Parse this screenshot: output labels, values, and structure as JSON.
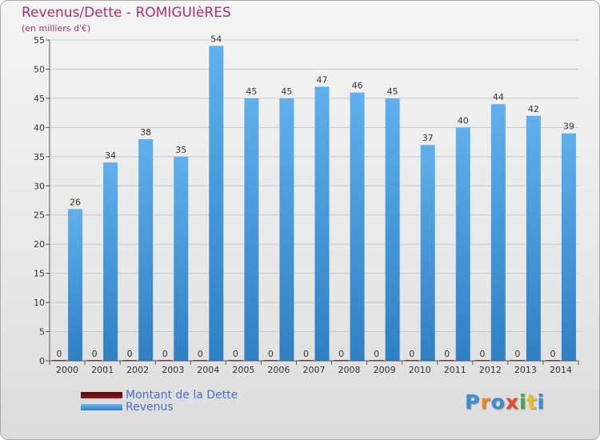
{
  "title": "Revenus/Dette - ROMIGUIèRES",
  "subtitle": "(en milliers d'€)",
  "legend": {
    "debt_label": "Montant de la Dette",
    "revenue_label": "Revenus"
  },
  "logo_text": "Proxiti",
  "colors": {
    "revenue": "#3a8fd6",
    "debt": "#7a1010",
    "title": "#b03066",
    "axis_text": "#333333"
  },
  "chart_data": {
    "type": "bar",
    "categories": [
      "2000",
      "2001",
      "2002",
      "2003",
      "2004",
      "2005",
      "2006",
      "2007",
      "2008",
      "2009",
      "2010",
      "2011",
      "2012",
      "2013",
      "2014"
    ],
    "series": [
      {
        "name": "Montant de la Dette",
        "values": [
          0,
          0,
          0,
          0,
          0,
          0,
          0,
          0,
          0,
          0,
          0,
          0,
          0,
          0,
          0
        ]
      },
      {
        "name": "Revenus",
        "values": [
          26,
          34,
          38,
          35,
          54,
          45,
          45,
          47,
          46,
          45,
          37,
          40,
          44,
          42,
          39
        ]
      }
    ],
    "ylim": [
      0,
      55
    ],
    "yticks": [
      0,
      5,
      10,
      15,
      20,
      25,
      30,
      35,
      40,
      45,
      50,
      55
    ],
    "grid": true
  }
}
